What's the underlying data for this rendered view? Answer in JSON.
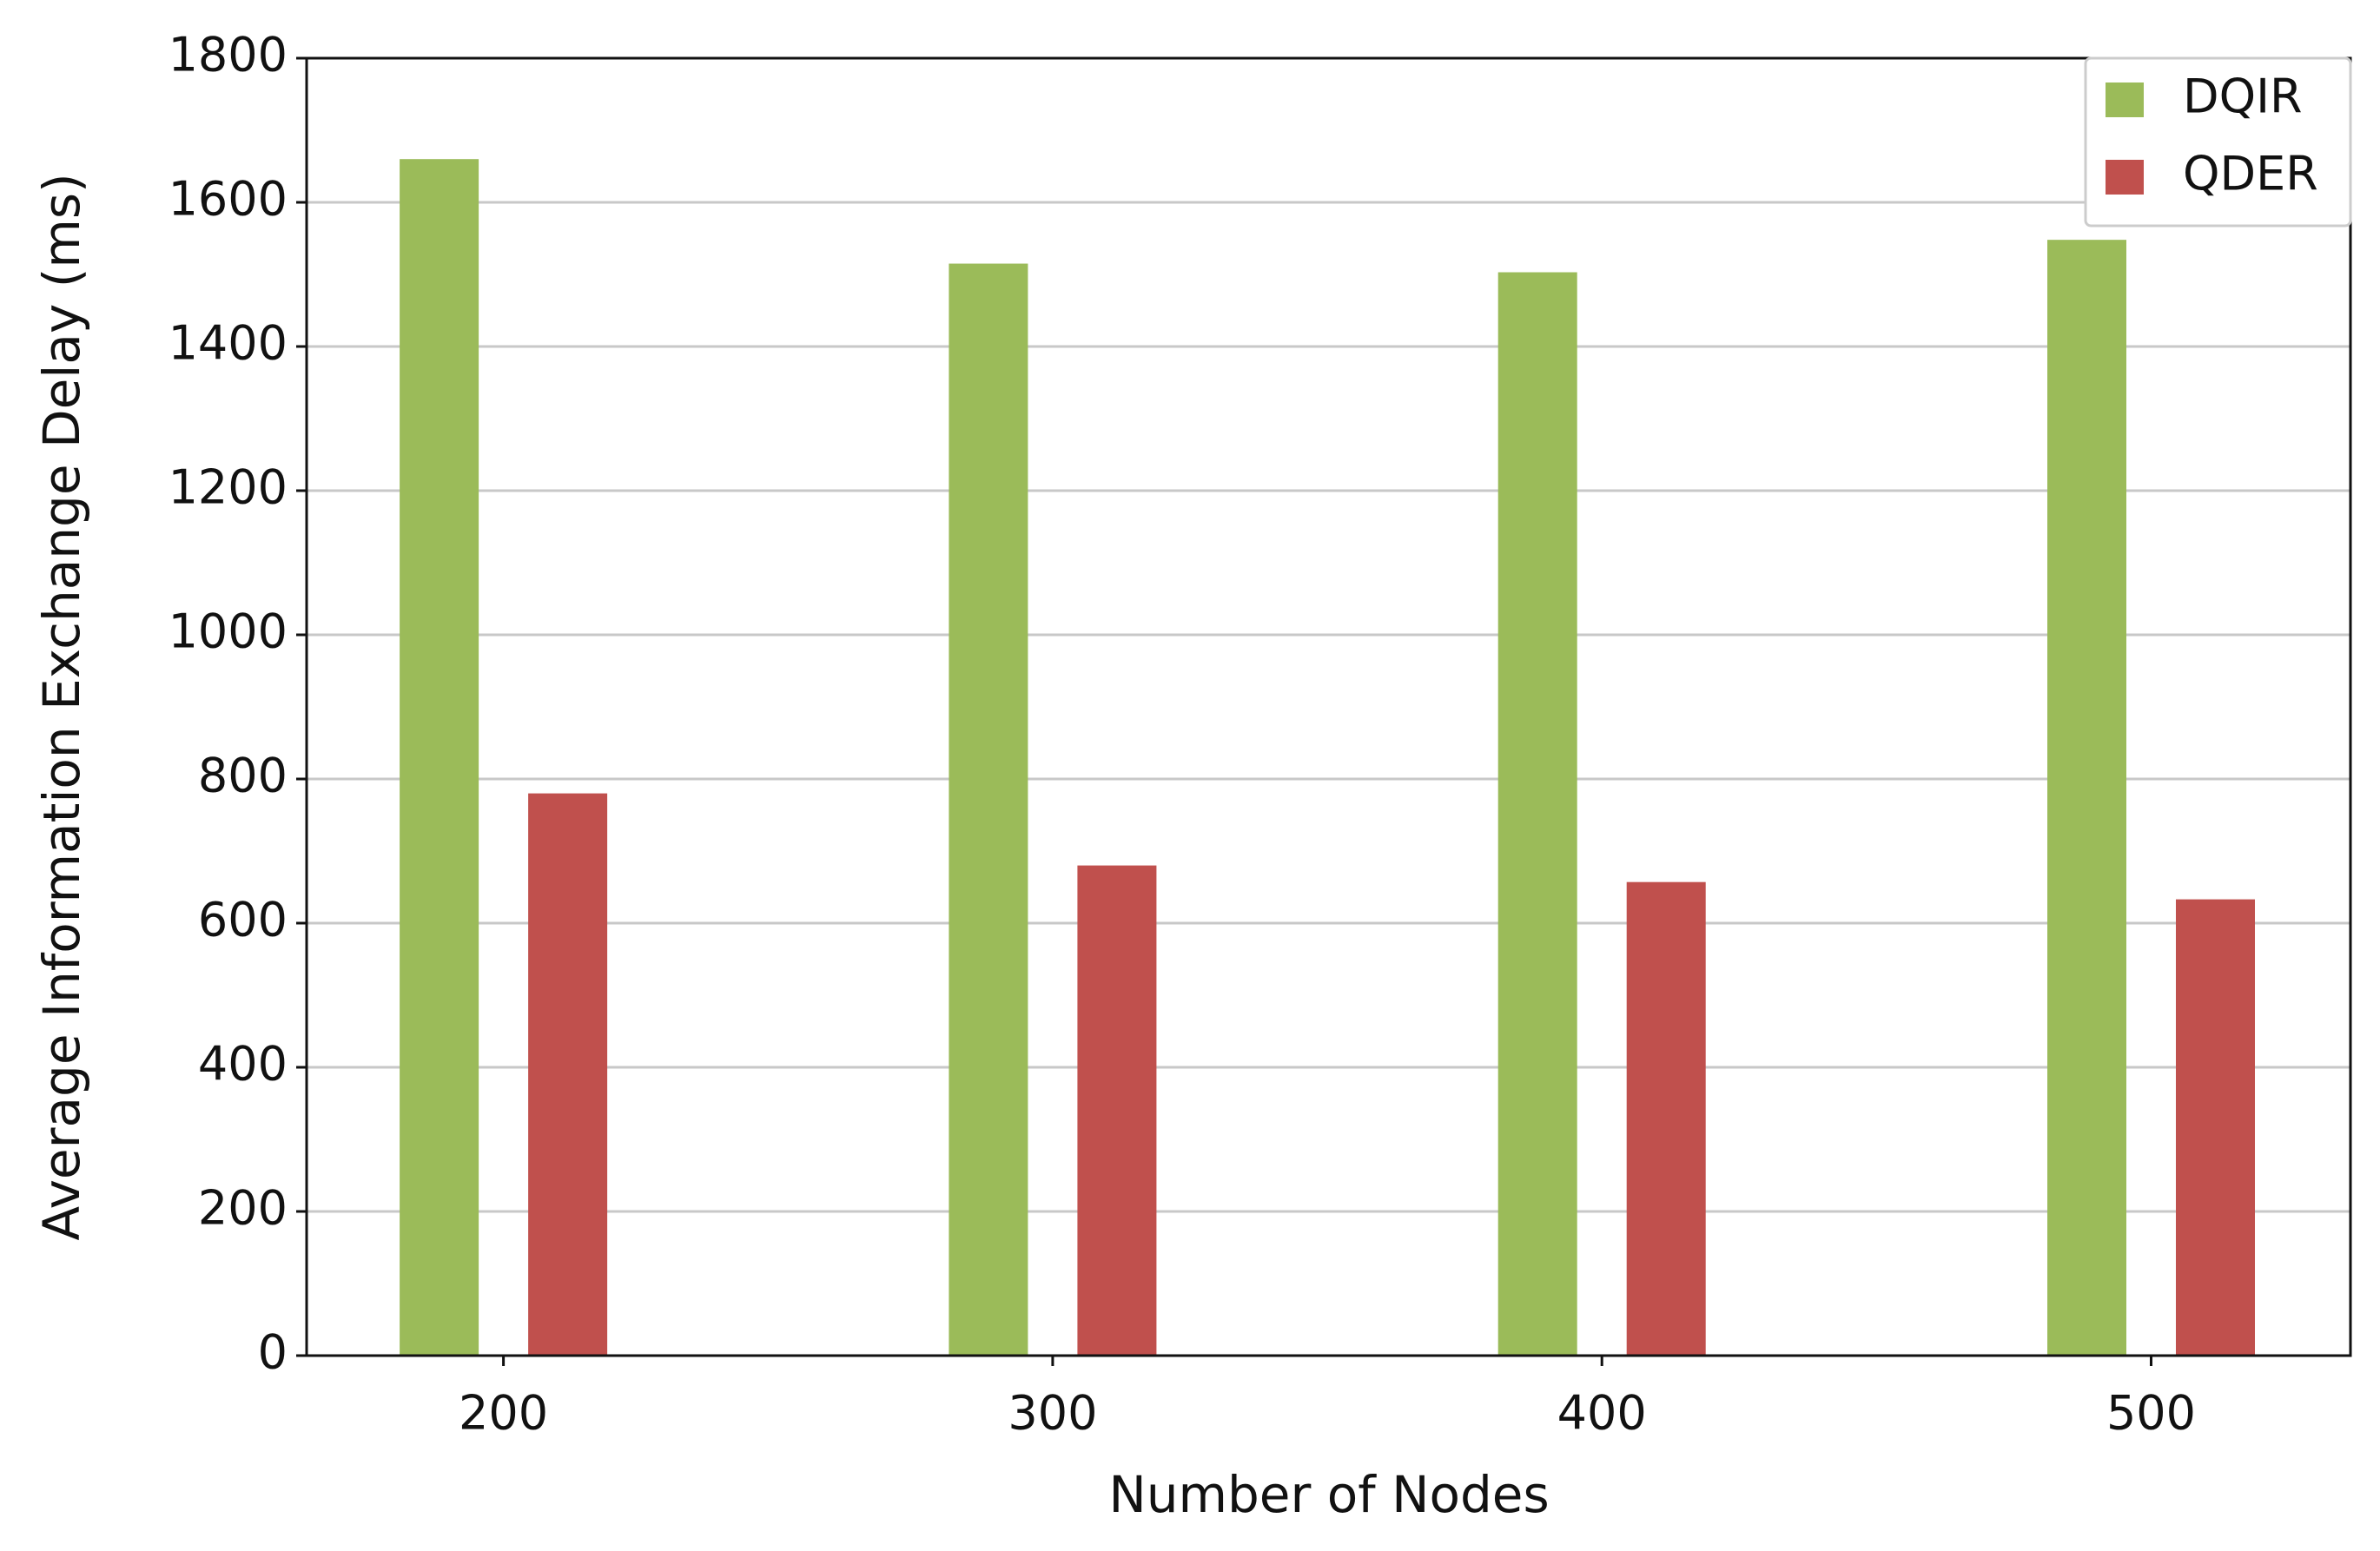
{
  "chart_data": {
    "type": "bar",
    "x_label": "Number of Nodes",
    "y_label": "Average Information Exchange Delay (ms)",
    "categories": [
      "200",
      "300",
      "400",
      "500"
    ],
    "series": [
      {
        "name": "DQIR",
        "color": "#9bbb59",
        "values": [
          1660,
          1515,
          1503,
          1548
        ]
      },
      {
        "name": "QDER",
        "color": "#c0504d",
        "values": [
          780,
          680,
          657,
          633
        ]
      }
    ],
    "ylim": [
      0,
      1800
    ],
    "yticks": [
      0,
      200,
      400,
      600,
      800,
      1000,
      1200,
      1400,
      1600,
      1800
    ],
    "grid": true,
    "legend": "upper right"
  }
}
